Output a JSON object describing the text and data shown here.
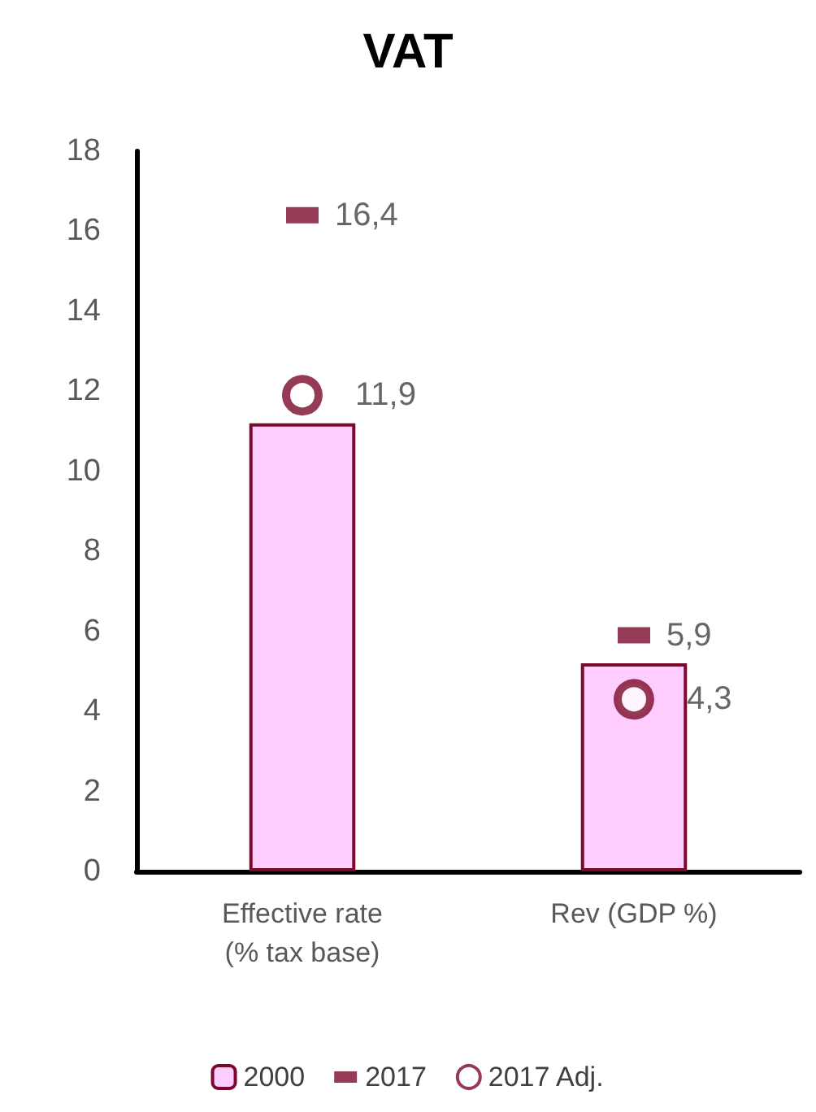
{
  "chart_data": {
    "type": "bar",
    "title": "VAT",
    "categories": [
      "Effective rate\n(% tax base)",
      "Rev (GDP %)"
    ],
    "series": [
      {
        "name": "2000",
        "color": "#ffccff",
        "values": [
          11.2,
          5.2
        ]
      },
      {
        "name": "2017",
        "type": "scatter",
        "marker": "square",
        "color": "#7b0a2a",
        "values": [
          16.4,
          5.9
        ],
        "value_labels": [
          "16,4",
          "5,9"
        ]
      },
      {
        "name": "2017 Adj.",
        "type": "scatter",
        "marker": "circle",
        "color": "#7b0a2a",
        "values": [
          11.9,
          4.3
        ],
        "value_labels": [
          "11,9",
          "4,3"
        ]
      }
    ],
    "ylim": [
      0,
      18
    ],
    "yticks": [
      0,
      2,
      4,
      6,
      8,
      10,
      12,
      14,
      16,
      18
    ],
    "grid": false,
    "legend": "bottom"
  }
}
